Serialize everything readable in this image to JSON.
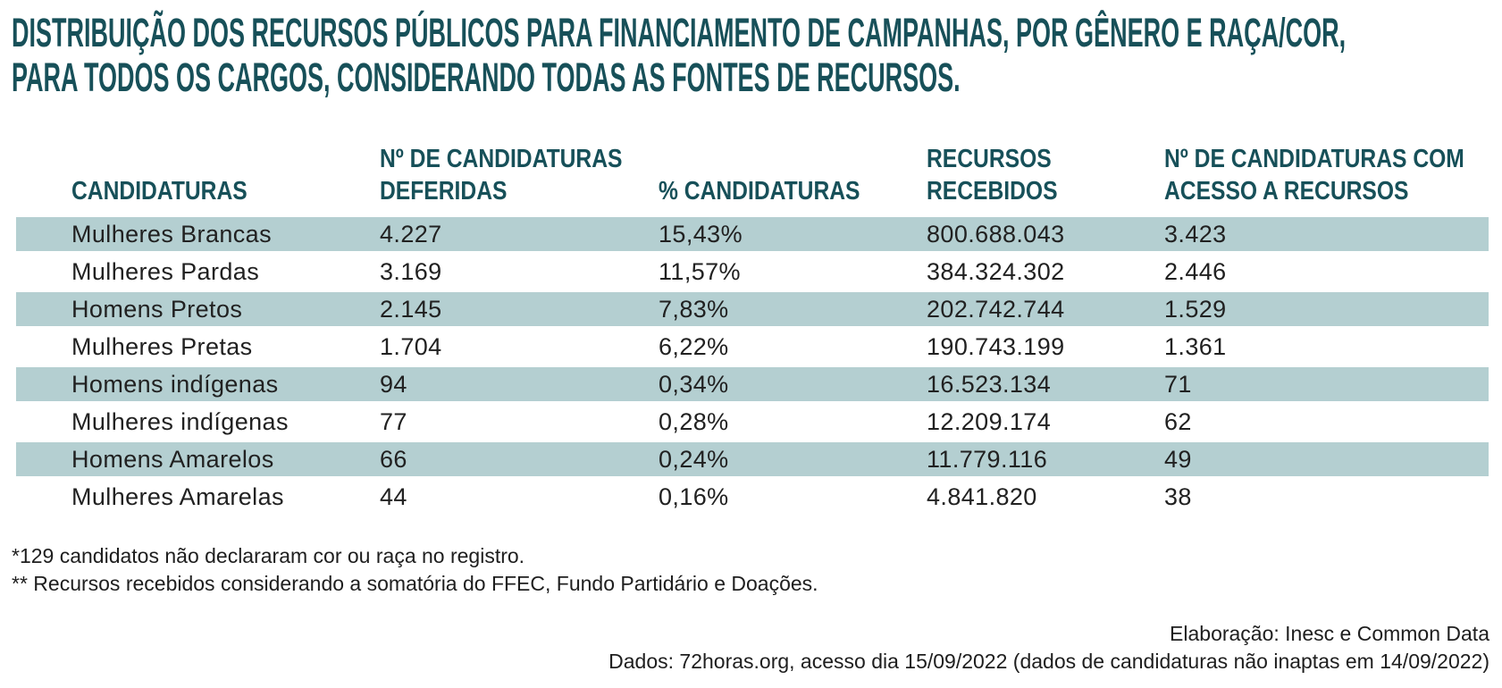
{
  "colors": {
    "accent_teal": "#175059",
    "row_band": "#b4cfd1",
    "body_text": "#212121"
  },
  "chart_data": {
    "type": "table",
    "title": "DISTRIBUIÇÃO DOS RECURSOS PÚBLICOS PARA FINANCIAMENTO DE CAMPANHAS, POR GÊNERO E RAÇA/COR,\nPARA TODOS OS CARGOS, CONSIDERANDO TODAS AS FONTES DE RECURSOS.",
    "columns": [
      "CANDIDATURAS",
      "Nº DE CANDIDATURAS\nDEFERIDAS",
      "% CANDIDATURAS",
      "RECURSOS\nRECEBIDOS",
      "Nº DE CANDIDATURAS COM\nACESSO A RECURSOS"
    ],
    "rows": [
      [
        "Mulheres Brancas",
        "4.227",
        "15,43%",
        "800.688.043",
        "3.423"
      ],
      [
        "Mulheres Pardas",
        "3.169",
        "11,57%",
        "384.324.302",
        "2.446"
      ],
      [
        "Homens Pretos",
        "2.145",
        "7,83%",
        "202.742.744",
        "1.529"
      ],
      [
        "Mulheres Pretas",
        "1.704",
        "6,22%",
        "190.743.199",
        "1.361"
      ],
      [
        "Homens indígenas",
        "94",
        "0,34%",
        "16.523.134",
        "71"
      ],
      [
        "Mulheres indígenas",
        "77",
        "0,28%",
        "12.209.174",
        "62"
      ],
      [
        "Homens Amarelos",
        "66",
        "0,24%",
        "11.779.116",
        "49"
      ],
      [
        "Mulheres Amarelas",
        "44",
        "0,16%",
        "4.841.820",
        "38"
      ]
    ],
    "legend_position": "none",
    "grid": "row-banding"
  },
  "footnotes": [
    "*129 candidatos não declararam cor ou raça no registro.",
    "** Recursos recebidos considerando a somatória do FFEC, Fundo Partidário e Doações."
  ],
  "credits": [
    "Elaboração: Inesc e Common Data",
    "Dados: 72horas.org, acesso dia 15/09/2022 (dados de candidaturas não inaptas em 14/09/2022)"
  ]
}
